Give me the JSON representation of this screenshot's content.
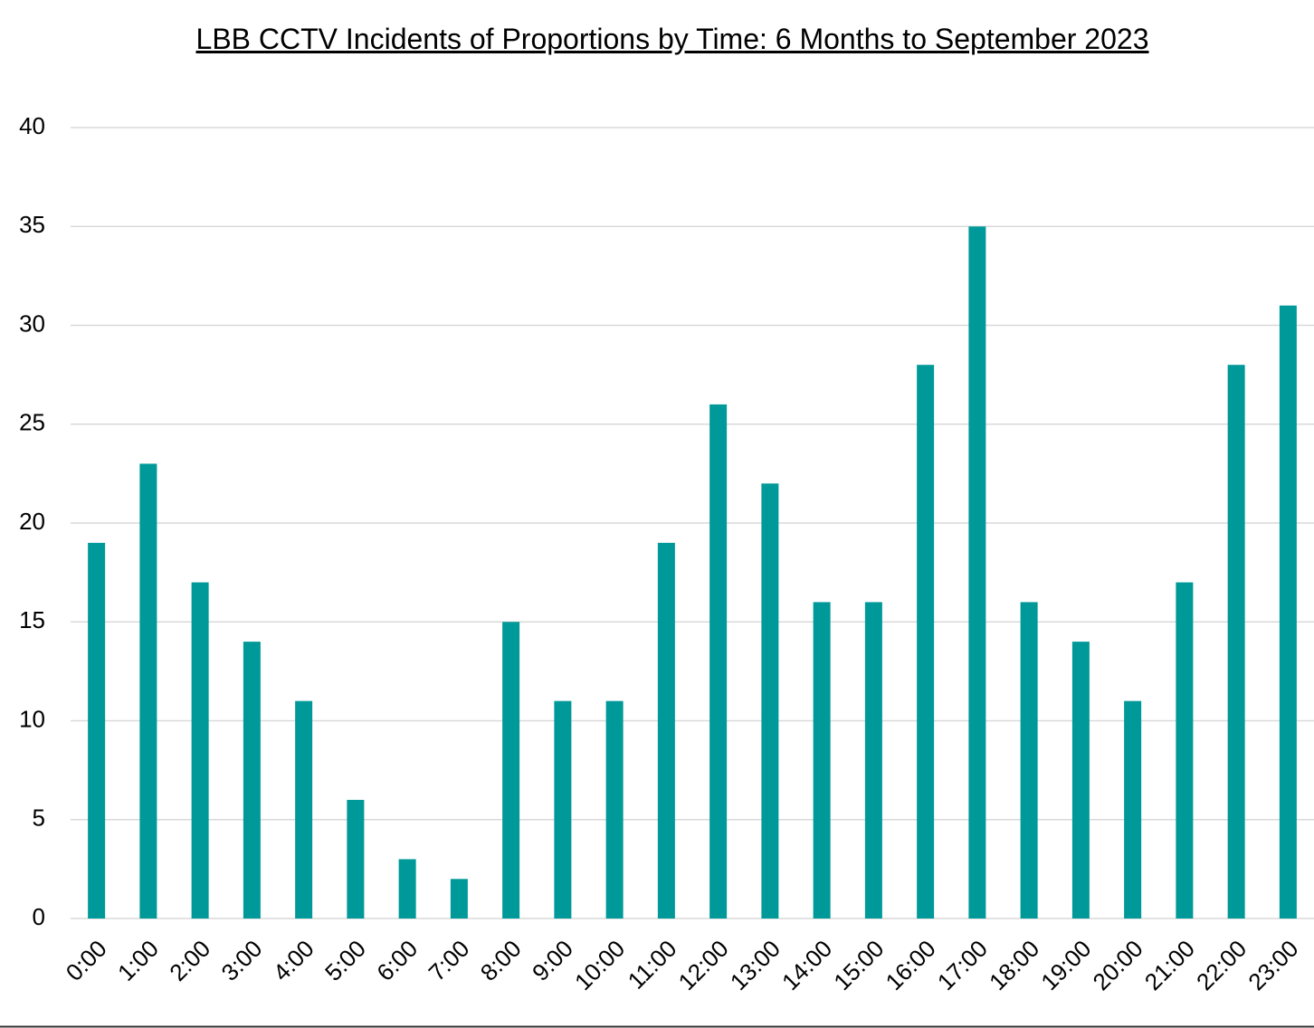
{
  "chart_data": {
    "type": "bar",
    "title": "LBB CCTV Incidents of Proportions by Time: 6 Months to September 2023",
    "categories": [
      "0:00",
      "1:00",
      "2:00",
      "3:00",
      "4:00",
      "5:00",
      "6:00",
      "7:00",
      "8:00",
      "9:00",
      "10:00",
      "11:00",
      "12:00",
      "13:00",
      "14:00",
      "15:00",
      "16:00",
      "17:00",
      "18:00",
      "19:00",
      "20:00",
      "21:00",
      "22:00",
      "23:00"
    ],
    "values": [
      19,
      23,
      17,
      14,
      11,
      6,
      3,
      2,
      15,
      11,
      11,
      19,
      26,
      22,
      16,
      16,
      28,
      35,
      16,
      14,
      11,
      17,
      28,
      31
    ],
    "color": "#009999",
    "ylim": [
      0,
      40
    ],
    "yticks": [
      0,
      5,
      10,
      15,
      20,
      25,
      30,
      35,
      40
    ],
    "grid": true
  }
}
